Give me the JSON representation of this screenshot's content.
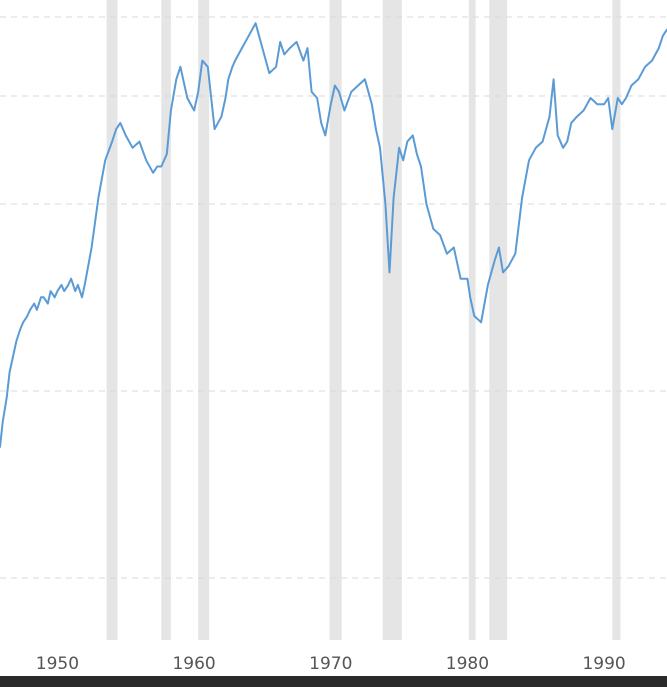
{
  "chart_data": {
    "type": "line",
    "title": "",
    "xlabel": "",
    "ylabel": "",
    "xlim": [
      1945.8,
      1994.6
    ],
    "ylim": [
      0,
      1
    ],
    "grid": "horizontal dashed",
    "legend": "none",
    "x_ticks": [
      "1950",
      "1960",
      "1970",
      "1980",
      "1990"
    ],
    "recession_bands": [
      {
        "start": 1953.6,
        "end": 1954.4
      },
      {
        "start": 1957.6,
        "end": 1958.3
      },
      {
        "start": 1960.3,
        "end": 1961.1
      },
      {
        "start": 1969.9,
        "end": 1970.8
      },
      {
        "start": 1973.8,
        "end": 1975.2
      },
      {
        "start": 1980.1,
        "end": 1980.6
      },
      {
        "start": 1981.6,
        "end": 1982.9
      },
      {
        "start": 1990.6,
        "end": 1991.2
      }
    ],
    "series": [
      {
        "color": "#5b9bd5",
        "x": [
          1945.8,
          1946.0,
          1946.3,
          1946.5,
          1946.8,
          1947.0,
          1947.3,
          1947.5,
          1947.8,
          1948.0,
          1948.3,
          1948.5,
          1948.8,
          1949.0,
          1949.3,
          1949.5,
          1949.8,
          1950.0,
          1950.3,
          1950.5,
          1950.8,
          1951.0,
          1951.3,
          1951.5,
          1951.8,
          1952.0,
          1952.5,
          1953.0,
          1953.5,
          1954.0,
          1954.3,
          1954.6,
          1955.0,
          1955.5,
          1956.0,
          1956.5,
          1957.0,
          1957.3,
          1957.6,
          1958.0,
          1958.3,
          1958.7,
          1959.0,
          1959.5,
          1960.0,
          1960.3,
          1960.6,
          1961.0,
          1961.5,
          1962.0,
          1962.3,
          1962.5,
          1962.8,
          1963.0,
          1963.5,
          1964.0,
          1964.5,
          1965.0,
          1965.5,
          1966.0,
          1966.3,
          1966.6,
          1967.0,
          1967.5,
          1968.0,
          1968.3,
          1968.6,
          1969.0,
          1969.3,
          1969.6,
          1970.0,
          1970.3,
          1970.6,
          1971.0,
          1971.5,
          1972.0,
          1972.5,
          1973.0,
          1973.3,
          1973.6,
          1974.0,
          1974.3,
          1974.6,
          1974.8,
          1975.0,
          1975.3,
          1975.6,
          1976.0,
          1976.3,
          1976.6,
          1977.0,
          1977.5,
          1978.0,
          1978.5,
          1979.0,
          1979.5,
          1980.0,
          1980.2,
          1980.5,
          1981.0,
          1981.5,
          1982.0,
          1982.3,
          1982.6,
          1983.0,
          1983.5,
          1984.0,
          1984.5,
          1985.0,
          1985.5,
          1986.0,
          1986.3,
          1986.6,
          1987.0,
          1987.3,
          1987.6,
          1988.0,
          1988.5,
          1989.0,
          1989.5,
          1990.0,
          1990.3,
          1990.6,
          1991.0,
          1991.3,
          1991.6,
          1992.0,
          1992.5,
          1993.0,
          1993.5,
          1994.0,
          1994.3,
          1994.6
        ],
        "y": [
          0.31,
          0.35,
          0.39,
          0.43,
          0.46,
          0.48,
          0.5,
          0.51,
          0.52,
          0.53,
          0.54,
          0.53,
          0.55,
          0.55,
          0.54,
          0.56,
          0.55,
          0.56,
          0.57,
          0.56,
          0.57,
          0.58,
          0.56,
          0.57,
          0.55,
          0.57,
          0.63,
          0.71,
          0.77,
          0.8,
          0.82,
          0.83,
          0.81,
          0.79,
          0.8,
          0.77,
          0.75,
          0.76,
          0.76,
          0.78,
          0.85,
          0.9,
          0.92,
          0.87,
          0.85,
          0.88,
          0.93,
          0.92,
          0.82,
          0.84,
          0.87,
          0.9,
          0.92,
          0.93,
          0.95,
          0.97,
          0.99,
          0.95,
          0.91,
          0.92,
          0.96,
          0.94,
          0.95,
          0.96,
          0.93,
          0.95,
          0.88,
          0.87,
          0.83,
          0.81,
          0.86,
          0.89,
          0.88,
          0.85,
          0.88,
          0.89,
          0.9,
          0.86,
          0.82,
          0.79,
          0.7,
          0.59,
          0.71,
          0.75,
          0.79,
          0.77,
          0.8,
          0.81,
          0.78,
          0.76,
          0.7,
          0.66,
          0.65,
          0.62,
          0.63,
          0.58,
          0.58,
          0.55,
          0.52,
          0.51,
          0.57,
          0.61,
          0.63,
          0.59,
          0.6,
          0.62,
          0.71,
          0.77,
          0.79,
          0.8,
          0.84,
          0.9,
          0.81,
          0.79,
          0.8,
          0.83,
          0.84,
          0.85,
          0.87,
          0.86,
          0.86,
          0.87,
          0.82,
          0.87,
          0.86,
          0.87,
          0.89,
          0.9,
          0.92,
          0.93,
          0.95,
          0.97,
          0.98
        ]
      }
    ]
  }
}
